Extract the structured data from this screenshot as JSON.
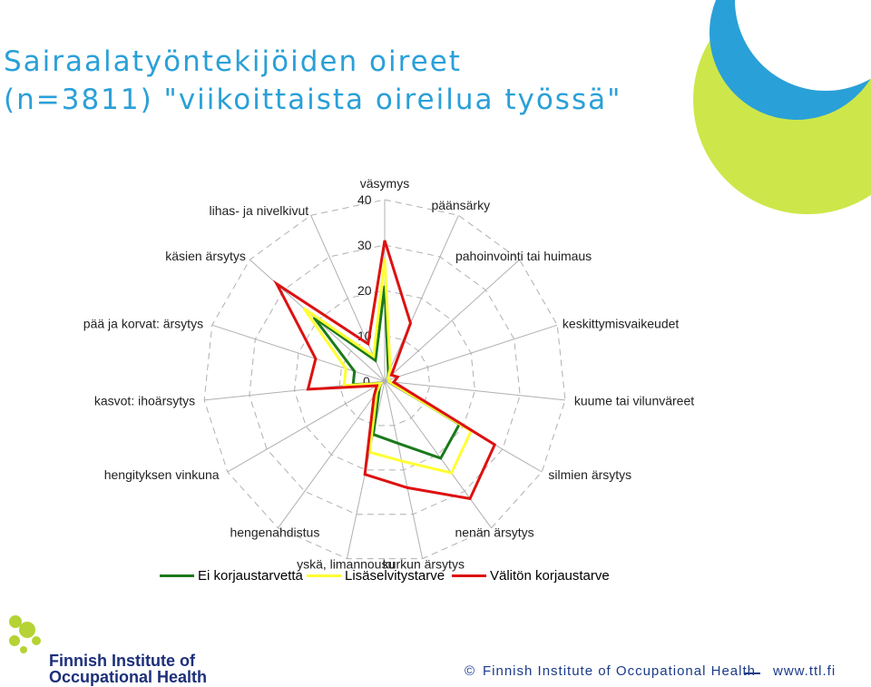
{
  "title": {
    "line1": "Sairaalatyöntekijöiden oireet",
    "line2": "(n=3811) \"viikoittaista oireilua työssä\""
  },
  "colors": {
    "title": "#2aa0d8",
    "series": [
      "#1a7a1a",
      "#ffff33",
      "#dd1111"
    ],
    "accent_green": "#cde74a",
    "accent_blue": "#2aa0d8",
    "logo_green": "#b5d334",
    "logo_navy": "#1c2f7a"
  },
  "chart_data": {
    "type": "radar",
    "axes": [
      "väsymys",
      "päänsärky",
      "pahoinvointi tai huimaus",
      "keskittymisvaikeudet",
      "kuume tai vilunväreet",
      "silmien ärsytys",
      "nenän ärsytys",
      "kurkun ärsytys",
      "yskä, limannousu",
      "hengenahdistus",
      "hengityksen vinkuna",
      "kasvot: ihoärsytys",
      "pää ja korvat: ärsytys",
      "käsien ärsytys",
      "lihas- ja nivelkivut"
    ],
    "r_ticks": [
      "0",
      "10",
      "20",
      "30",
      "40"
    ],
    "rlim": [
      0,
      40
    ],
    "series": [
      {
        "name": "Ei korjaustarvetta",
        "values": [
          21,
          2,
          1,
          1,
          1,
          19,
          21,
          14,
          12,
          2,
          1,
          7,
          7,
          21,
          5
        ]
      },
      {
        "name": "Lisäselvitystarve",
        "values": [
          27,
          3,
          1,
          1,
          1,
          22,
          25,
          18,
          16,
          3,
          1,
          9,
          9,
          24,
          6
        ]
      },
      {
        "name": "Välitön korjaustarve",
        "values": [
          31,
          14,
          2,
          3,
          2,
          28,
          32,
          24,
          21,
          4,
          2,
          17,
          16,
          32,
          9
        ]
      }
    ],
    "legend_position": "bottom"
  },
  "footer": {
    "copyright_symbol": "©",
    "organization": "Finnish Institute of Occupational Health",
    "website": "www.ttl.fi",
    "logo_line1": "Finnish Institute of",
    "logo_line2": "Occupational Health"
  }
}
